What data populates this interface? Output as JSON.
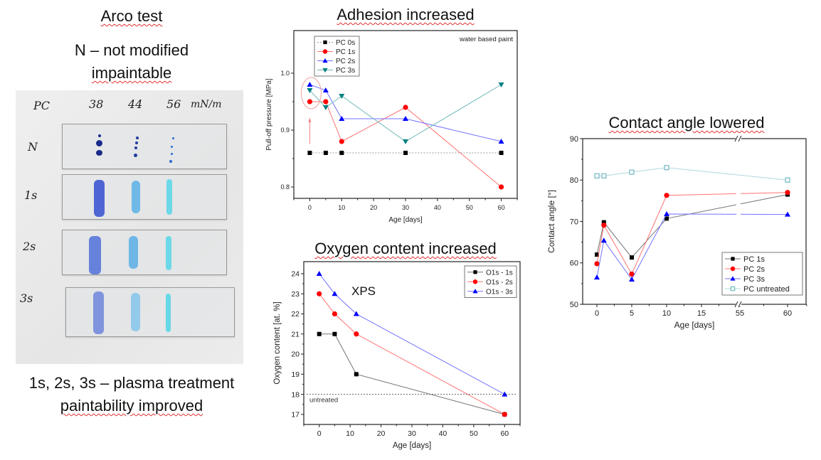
{
  "left_panel": {
    "title": "Arco test",
    "subtitle_line1": "N – not modified",
    "subtitle_line2": "impaintable",
    "caption_line1": "1s, 2s, 3s – plasma treatment",
    "caption_line2": "paintability improved",
    "photo": {
      "header_label": "PC",
      "columns": [
        "38",
        "44",
        "56"
      ],
      "unit": "mN/m",
      "rows": [
        "N",
        "1s",
        "2s",
        "3s"
      ]
    }
  },
  "chart_data": [
    {
      "id": "adhesion",
      "type": "line",
      "title": "Adhesion increased",
      "annotation": "water based paint",
      "xlabel": "Age [days]",
      "ylabel": "Pull-off pressure [MPa]",
      "xlim": [
        -5,
        65
      ],
      "ylim": [
        0.78,
        1.075
      ],
      "xticks": [
        0,
        10,
        20,
        30,
        40,
        50,
        60
      ],
      "yticks": [
        0.8,
        0.9,
        1.0
      ],
      "ytick_labels": [
        "0.8",
        "0.9",
        "1.0"
      ],
      "legend_position": "top-left",
      "x": [
        0,
        5,
        10,
        30,
        60
      ],
      "series": [
        {
          "name": "PC 0s",
          "color": "#000000",
          "marker": "square",
          "dashed": true,
          "values": [
            0.86,
            0.86,
            0.86,
            0.86,
            0.86
          ]
        },
        {
          "name": "PC 1s",
          "color": "#ff0000",
          "marker": "circle",
          "values": [
            0.95,
            0.95,
            0.88,
            0.94,
            0.8
          ]
        },
        {
          "name": "PC 2s",
          "color": "#0000ff",
          "marker": "triangle-up",
          "values": [
            0.98,
            0.97,
            0.92,
            0.92,
            0.88
          ]
        },
        {
          "name": "PC 3s",
          "color": "#008080",
          "marker": "triangle-down",
          "values": [
            0.97,
            0.94,
            0.96,
            0.88,
            0.98
          ]
        }
      ]
    },
    {
      "id": "oxygen",
      "type": "line",
      "title": "Oxygen content increased",
      "annotation": "XPS",
      "reference_label": "untreated",
      "reference_value": 18,
      "xlabel": "Age [days]",
      "ylabel": "Oxygen content [at. %]",
      "xlim": [
        -5,
        65
      ],
      "ylim": [
        16.5,
        24.6
      ],
      "xticks": [
        0,
        10,
        20,
        30,
        40,
        50,
        60
      ],
      "yticks": [
        17,
        18,
        19,
        20,
        21,
        22,
        23,
        24
      ],
      "legend_position": "top-right",
      "x": [
        0,
        5,
        12,
        60
      ],
      "series": [
        {
          "name": "O1s - 1s",
          "color": "#000000",
          "marker": "square",
          "values": [
            21,
            21,
            19,
            17
          ]
        },
        {
          "name": "O1s - 2s",
          "color": "#ff0000",
          "marker": "circle",
          "values": [
            23,
            22,
            21,
            17
          ]
        },
        {
          "name": "O1s - 3s",
          "color": "#0000ff",
          "marker": "triangle-up",
          "values": [
            24,
            23,
            22,
            18
          ]
        }
      ]
    },
    {
      "id": "contact_angle",
      "type": "line",
      "title": "Contact angle lowered",
      "xlabel": "Age [days]",
      "ylabel": "Contact angle [°]",
      "axis_break": [
        19,
        55
      ],
      "xlim": [
        -2,
        62
      ],
      "ylim": [
        50,
        90
      ],
      "xticks": [
        0,
        5,
        10,
        15,
        55,
        60
      ],
      "yticks": [
        50,
        60,
        70,
        80,
        90
      ],
      "legend_position": "bottom-right",
      "x": [
        0,
        1,
        5,
        10,
        60
      ],
      "series": [
        {
          "name": "PC 1s",
          "color": "#000000",
          "marker": "square",
          "values": [
            62,
            69.8,
            61.3,
            70.7,
            76.5
          ]
        },
        {
          "name": "PC 2s",
          "color": "#ff0000",
          "marker": "circle",
          "values": [
            59.8,
            69.1,
            57.3,
            76.3,
            77
          ]
        },
        {
          "name": "PC 3s",
          "color": "#0000ff",
          "marker": "triangle-up",
          "values": [
            56.5,
            65.4,
            56,
            71.8,
            71.7
          ]
        },
        {
          "name": "PC untreated",
          "color": "#6fb8c0",
          "marker": "open-square",
          "x": [
            0,
            1,
            5,
            10,
            60
          ],
          "values": [
            81,
            81,
            81.9,
            83,
            80
          ]
        }
      ]
    }
  ]
}
